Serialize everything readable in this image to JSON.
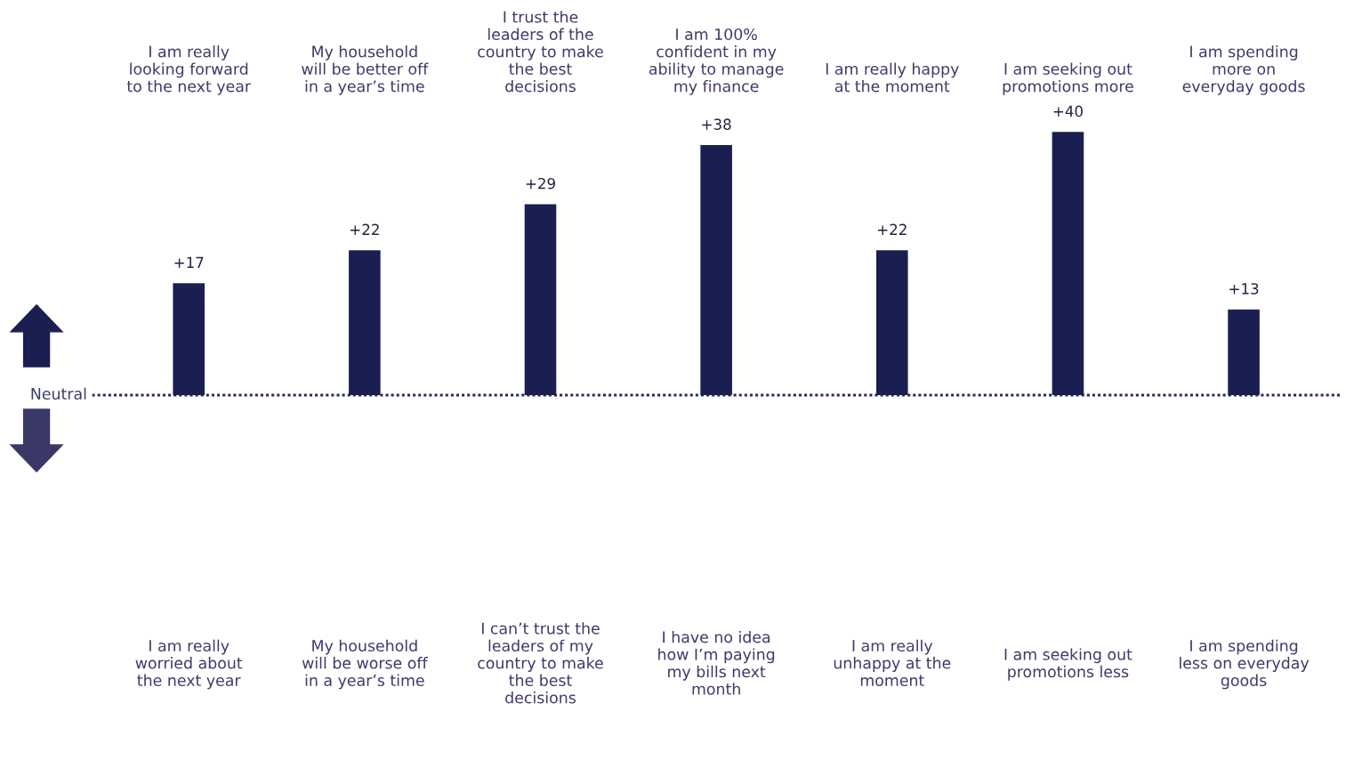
{
  "chart_data": {
    "type": "bar",
    "categories": [
      "I am really\nlooking forward\nto the next year",
      "My household\nwill be better off\nin a year’s time",
      "I trust the\nleaders of the\ncountry to make\nthe best\ndecisions",
      "I am 100%\nconfident in my\nability to manage\nmy finance",
      "I am really happy\nat the moment",
      "I am seeking out\npromotions more",
      "I am spending\nmore on\neveryday goods"
    ],
    "values": [
      17,
      22,
      29,
      38,
      22,
      40,
      13
    ],
    "value_labels": [
      "+17",
      "+22",
      "+29",
      "+38",
      "+22",
      "+40",
      "+13"
    ],
    "color": "#1b1e50",
    "ref_lines": [
      {
        "axis": "y",
        "value": 0,
        "label": "Neutral",
        "line_style": "dotted",
        "color": "#2a2a55"
      }
    ],
    "annotations": [
      "I am really\nworried about\nthe next year",
      "My household\nwill be worse off\nin a year’s time",
      "I can’t trust the\nleaders of my\ncountry to make\nthe best\ndecisions",
      "I have no idea\nhow I’m paying\nmy bills next\nmonth",
      "I am really\nunhappy at the\nmoment",
      "I am seeking out\npromotions less",
      "I am spending\nless on everyday\ngoods"
    ],
    "grid": false
  }
}
